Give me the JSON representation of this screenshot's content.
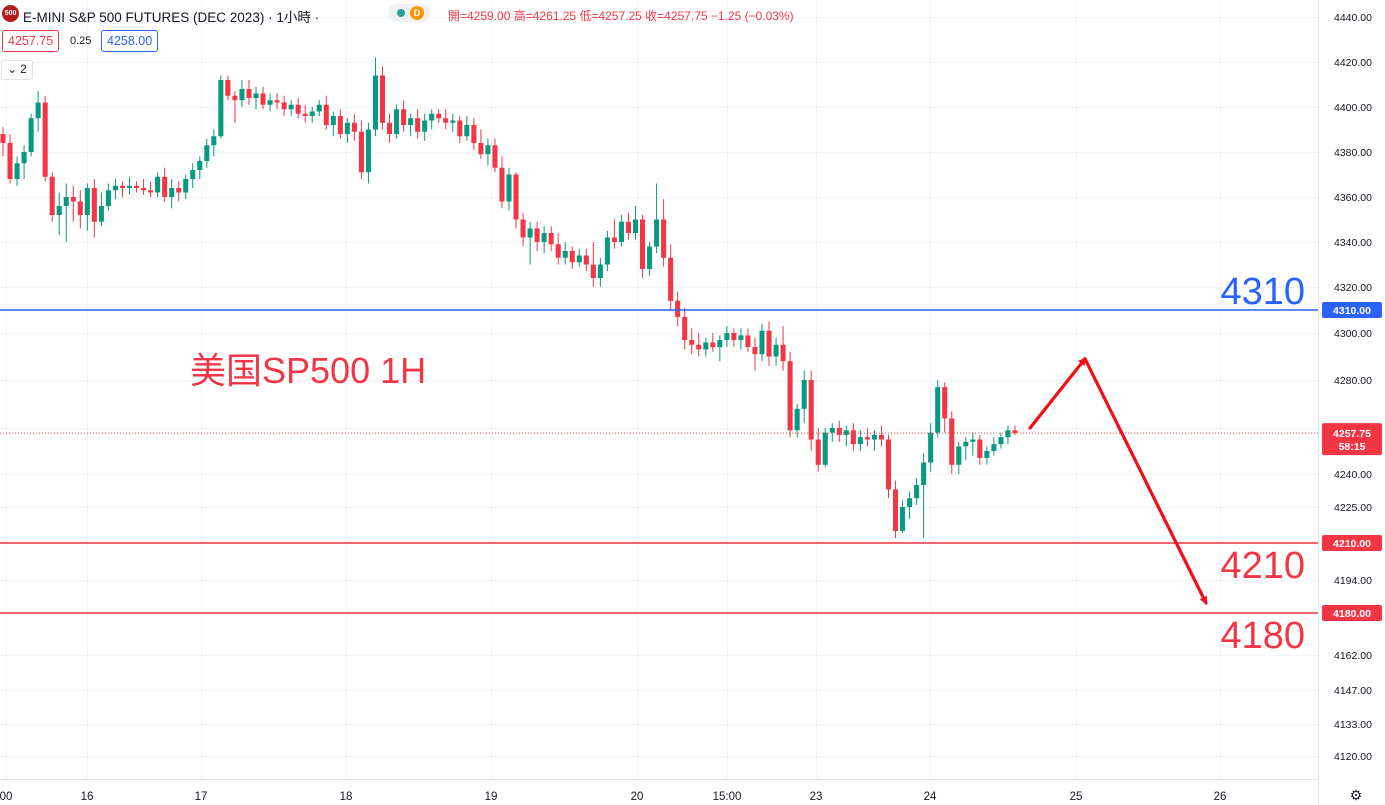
{
  "header": {
    "logo_text": "500",
    "title": "E-MINI S&P 500 FUTURES (DEC 2023) · 1小時 ·",
    "status_code": "D",
    "ohlc": "開=4259.00  高=4261.25  低=4257.25  收=4257.75  −1.25 (−0.03%)"
  },
  "quote": {
    "bid": "4257.75",
    "spread": "0.25",
    "ask": "4258.00"
  },
  "indicator_toggle": "2",
  "colors": {
    "up": "#089981",
    "down": "#f23645",
    "blue_line": "#2962ff",
    "red_line": "#f23645",
    "arrow": "#f20d1a"
  },
  "icons": {
    "collapse": "chevron-down-icon",
    "settings": "gear-icon"
  },
  "chart_data": {
    "type": "candlestick",
    "annotation": "美国SP500 1H",
    "y_tick_labels": [
      "4440.00",
      "4420.00",
      "4400.00",
      "4380.00",
      "4360.00",
      "4340.00",
      "4320.00",
      "4300.00",
      "4280.00",
      "4260.00",
      "4240.00",
      "4225.00",
      "4210.00",
      "4194.00",
      "4180.00",
      "4162.00",
      "4147.00",
      "4133.00",
      "4120.00"
    ],
    "y_ticks": [
      4440,
      4420,
      4400,
      4380,
      4360,
      4340,
      4320,
      4300,
      4280,
      4260,
      4240,
      4225,
      4210,
      4194,
      4180,
      4162,
      4147,
      4133,
      4120
    ],
    "x_tick_labels": [
      "00",
      "16",
      "17",
      "18",
      "19",
      "20",
      "15:00",
      "23",
      "24",
      "25",
      "26"
    ],
    "horizontal_levels": [
      {
        "value": 4310,
        "label": "4310",
        "axis_label": "4310.00",
        "color": "#2962ff"
      },
      {
        "value": 4210,
        "label": "4210",
        "axis_label": "4210.00",
        "color": "#f23645"
      },
      {
        "value": 4180,
        "label": "4180",
        "axis_label": "4180.00",
        "color": "#f23645"
      }
    ],
    "last_price": {
      "value": 4257.75,
      "label": "4257.75",
      "countdown": "58:15"
    },
    "forecast_path": [
      4260,
      4289,
      4180
    ],
    "candles": [
      [
        4388,
        4391,
        4378,
        4384
      ],
      [
        4384,
        4388,
        4366,
        4368
      ],
      [
        4368,
        4378,
        4365,
        4375
      ],
      [
        4375,
        4383,
        4368,
        4380
      ],
      [
        4380,
        4397,
        4378,
        4395
      ],
      [
        4395,
        4407,
        4389,
        4402
      ],
      [
        4402,
        4405,
        4367,
        4369
      ],
      [
        4369,
        4371,
        4349,
        4352
      ],
      [
        4352,
        4362,
        4343,
        4356
      ],
      [
        4356,
        4366,
        4340,
        4360
      ],
      [
        4360,
        4365,
        4349,
        4358
      ],
      [
        4358,
        4363,
        4346,
        4352
      ],
      [
        4352,
        4366,
        4345,
        4364
      ],
      [
        4364,
        4368,
        4342,
        4349
      ],
      [
        4349,
        4362,
        4347,
        4356
      ],
      [
        4356,
        4366,
        4354,
        4363
      ],
      [
        4363,
        4368,
        4359,
        4365
      ],
      [
        4365,
        4367,
        4360,
        4364
      ],
      [
        4364,
        4369,
        4361,
        4365
      ],
      [
        4365,
        4367,
        4362,
        4364
      ],
      [
        4364,
        4368,
        4361,
        4363
      ],
      [
        4363,
        4367,
        4360,
        4362
      ],
      [
        4362,
        4371,
        4360,
        4369
      ],
      [
        4369,
        4373,
        4358,
        4360
      ],
      [
        4360,
        4368,
        4355,
        4364
      ],
      [
        4364,
        4367,
        4358,
        4362
      ],
      [
        4362,
        4370,
        4359,
        4368
      ],
      [
        4368,
        4375,
        4364,
        4372
      ],
      [
        4372,
        4378,
        4368,
        4376
      ],
      [
        4376,
        4386,
        4373,
        4383
      ],
      [
        4383,
        4390,
        4378,
        4387
      ],
      [
        4387,
        4414,
        4386,
        4412
      ],
      [
        4412,
        4414,
        4403,
        4405
      ],
      [
        4405,
        4407,
        4393,
        4403
      ],
      [
        4403,
        4412,
        4400,
        4408
      ],
      [
        4408,
        4412,
        4401,
        4404
      ],
      [
        4404,
        4409,
        4399,
        4406
      ],
      [
        4406,
        4409,
        4399,
        4401
      ],
      [
        4401,
        4406,
        4398,
        4403
      ],
      [
        4403,
        4406,
        4399,
        4402
      ],
      [
        4402,
        4405,
        4396,
        4399
      ],
      [
        4399,
        4403,
        4396,
        4401
      ],
      [
        4401,
        4404,
        4395,
        4397
      ],
      [
        4397,
        4401,
        4393,
        4396
      ],
      [
        4396,
        4400,
        4393,
        4398
      ],
      [
        4398,
        4403,
        4396,
        4401
      ],
      [
        4401,
        4405,
        4390,
        4392
      ],
      [
        4392,
        4398,
        4387,
        4396
      ],
      [
        4396,
        4399,
        4386,
        4388
      ],
      [
        4388,
        4395,
        4384,
        4393
      ],
      [
        4393,
        4397,
        4385,
        4389
      ],
      [
        4389,
        4394,
        4368,
        4371
      ],
      [
        4371,
        4393,
        4366,
        4390
      ],
      [
        4390,
        4422,
        4387,
        4414
      ],
      [
        4414,
        4418,
        4390,
        4393
      ],
      [
        4393,
        4397,
        4384,
        4388
      ],
      [
        4388,
        4401,
        4386,
        4399
      ],
      [
        4399,
        4403,
        4389,
        4392
      ],
      [
        4392,
        4397,
        4387,
        4395
      ],
      [
        4395,
        4399,
        4386,
        4389
      ],
      [
        4389,
        4397,
        4385,
        4394
      ],
      [
        4394,
        4399,
        4390,
        4397
      ],
      [
        4397,
        4399,
        4393,
        4395
      ],
      [
        4395,
        4399,
        4390,
        4393
      ],
      [
        4393,
        4397,
        4389,
        4394
      ],
      [
        4394,
        4396,
        4384,
        4387
      ],
      [
        4387,
        4396,
        4385,
        4392
      ],
      [
        4392,
        4395,
        4381,
        4384
      ],
      [
        4384,
        4390,
        4377,
        4379
      ],
      [
        4379,
        4386,
        4374,
        4383
      ],
      [
        4383,
        4386,
        4371,
        4373
      ],
      [
        4373,
        4378,
        4355,
        4358
      ],
      [
        4358,
        4373,
        4354,
        4370
      ],
      [
        4370,
        4371,
        4346,
        4350
      ],
      [
        4350,
        4353,
        4338,
        4342
      ],
      [
        4342,
        4349,
        4330,
        4346
      ],
      [
        4346,
        4349,
        4336,
        4340
      ],
      [
        4340,
        4347,
        4335,
        4344
      ],
      [
        4344,
        4347,
        4336,
        4339
      ],
      [
        4339,
        4344,
        4330,
        4333
      ],
      [
        4333,
        4340,
        4330,
        4336
      ],
      [
        4336,
        4338,
        4328,
        4331
      ],
      [
        4331,
        4337,
        4329,
        4334
      ],
      [
        4334,
        4337,
        4327,
        4330
      ],
      [
        4330,
        4340,
        4320,
        4324
      ],
      [
        4324,
        4333,
        4320,
        4330
      ],
      [
        4330,
        4345,
        4327,
        4342
      ],
      [
        4342,
        4350,
        4337,
        4340
      ],
      [
        4340,
        4352,
        4338,
        4349
      ],
      [
        4349,
        4353,
        4341,
        4344
      ],
      [
        4344,
        4356,
        4341,
        4350
      ],
      [
        4350,
        4352,
        4324,
        4328
      ],
      [
        4328,
        4340,
        4325,
        4338
      ],
      [
        4338,
        4366,
        4335,
        4350
      ],
      [
        4350,
        4359,
        4329,
        4333
      ],
      [
        4333,
        4339,
        4310,
        4314
      ],
      [
        4314,
        4318,
        4303,
        4307
      ],
      [
        4307,
        4311,
        4293,
        4297
      ],
      [
        4297,
        4302,
        4291,
        4295
      ],
      [
        4295,
        4300,
        4290,
        4293
      ],
      [
        4293,
        4298,
        4290,
        4296
      ],
      [
        4296,
        4300,
        4292,
        4294
      ],
      [
        4294,
        4299,
        4288,
        4297
      ],
      [
        4297,
        4303,
        4294,
        4300
      ],
      [
        4300,
        4302,
        4294,
        4297
      ],
      [
        4297,
        4302,
        4293,
        4299
      ],
      [
        4299,
        4302,
        4292,
        4294
      ],
      [
        4294,
        4298,
        4284,
        4291
      ],
      [
        4291,
        4304,
        4288,
        4301
      ],
      [
        4301,
        4305,
        4286,
        4290
      ],
      [
        4290,
        4298,
        4286,
        4295
      ],
      [
        4295,
        4303,
        4284,
        4288
      ],
      [
        4288,
        4292,
        4256,
        4259
      ],
      [
        4259,
        4270,
        4256,
        4268
      ],
      [
        4268,
        4284,
        4262,
        4280
      ],
      [
        4280,
        4284,
        4250,
        4255
      ],
      [
        4255,
        4260,
        4241,
        4244
      ],
      [
        4244,
        4260,
        4243,
        4258
      ],
      [
        4258,
        4262,
        4254,
        4260
      ],
      [
        4260,
        4263,
        4254,
        4257
      ],
      [
        4257,
        4261,
        4252,
        4259
      ],
      [
        4259,
        4262,
        4250,
        4253
      ],
      [
        4253,
        4259,
        4250,
        4256
      ],
      [
        4256,
        4260,
        4252,
        4255
      ],
      [
        4255,
        4259,
        4250,
        4257
      ],
      [
        4257,
        4261,
        4252,
        4255
      ],
      [
        4255,
        4257,
        4229,
        4233
      ],
      [
        4233,
        4237,
        4212,
        4215
      ],
      [
        4215,
        4228,
        4214,
        4225
      ],
      [
        4225,
        4232,
        4220,
        4229
      ],
      [
        4229,
        4238,
        4226,
        4235
      ],
      [
        4235,
        4249,
        4212,
        4245
      ],
      [
        4245,
        4262,
        4241,
        4258
      ],
      [
        4258,
        4280,
        4256,
        4277
      ],
      [
        4277,
        4279,
        4258,
        4264
      ],
      [
        4264,
        4267,
        4240,
        4244
      ],
      [
        4244,
        4254,
        4240,
        4252
      ],
      [
        4252,
        4256,
        4246,
        4254
      ],
      [
        4254,
        4258,
        4248,
        4255
      ],
      [
        4255,
        4257,
        4244,
        4247
      ],
      [
        4247,
        4252,
        4244,
        4250
      ],
      [
        4250,
        4256,
        4248,
        4253
      ],
      [
        4253,
        4258,
        4251,
        4256
      ],
      [
        4256,
        4261,
        4253,
        4259
      ],
      [
        4259,
        4261,
        4257,
        4257.75
      ]
    ]
  }
}
